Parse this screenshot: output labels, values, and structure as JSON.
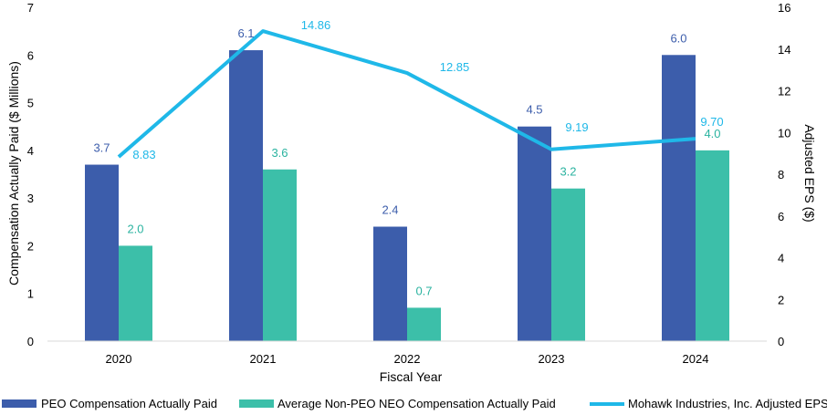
{
  "chart_data": {
    "type": "bar",
    "categories": [
      "2020",
      "2021",
      "2022",
      "2023",
      "2024"
    ],
    "series": [
      {
        "name": "PEO Compensation Actually Paid",
        "type": "bar",
        "axis": "left",
        "values": [
          3.7,
          6.1,
          2.4,
          4.5,
          6.0
        ],
        "labels": [
          "3.7",
          "6.1",
          "2.4",
          "4.5",
          "6.0"
        ],
        "color": "#3c5dab",
        "label_color": "#3c5dab"
      },
      {
        "name": "Average Non-PEO NEO Compensation Actually Paid",
        "type": "bar",
        "axis": "left",
        "values": [
          2.0,
          3.6,
          0.7,
          3.2,
          4.0
        ],
        "labels": [
          "2.0",
          "3.6",
          "0.7",
          "3.2",
          "4.0"
        ],
        "color": "#3cbfa9",
        "label_color": "#2bb3a0"
      },
      {
        "name": "Mohawk Industries, Inc. Adjusted EPS",
        "type": "line",
        "axis": "right",
        "values": [
          8.83,
          14.86,
          12.85,
          9.19,
          9.7
        ],
        "labels": [
          "8.83",
          "14.86",
          "12.85",
          "9.19",
          "9.70"
        ],
        "color": "#1fb8e8",
        "label_color": "#1fb8e8"
      }
    ],
    "xlabel": "Fiscal Year",
    "ylabel": "Compensation Actually Paid ($ Millions)",
    "y2label": "Adjusted EPS ($)",
    "ylim": [
      0,
      7
    ],
    "y2lim": [
      0,
      16
    ],
    "yticks": [
      "0",
      "1",
      "2",
      "3",
      "4",
      "5",
      "6",
      "7"
    ],
    "y2ticks": [
      "0",
      "2",
      "4",
      "6",
      "8",
      "10",
      "12",
      "14",
      "16"
    ],
    "grid": false,
    "legend": "bottom"
  }
}
